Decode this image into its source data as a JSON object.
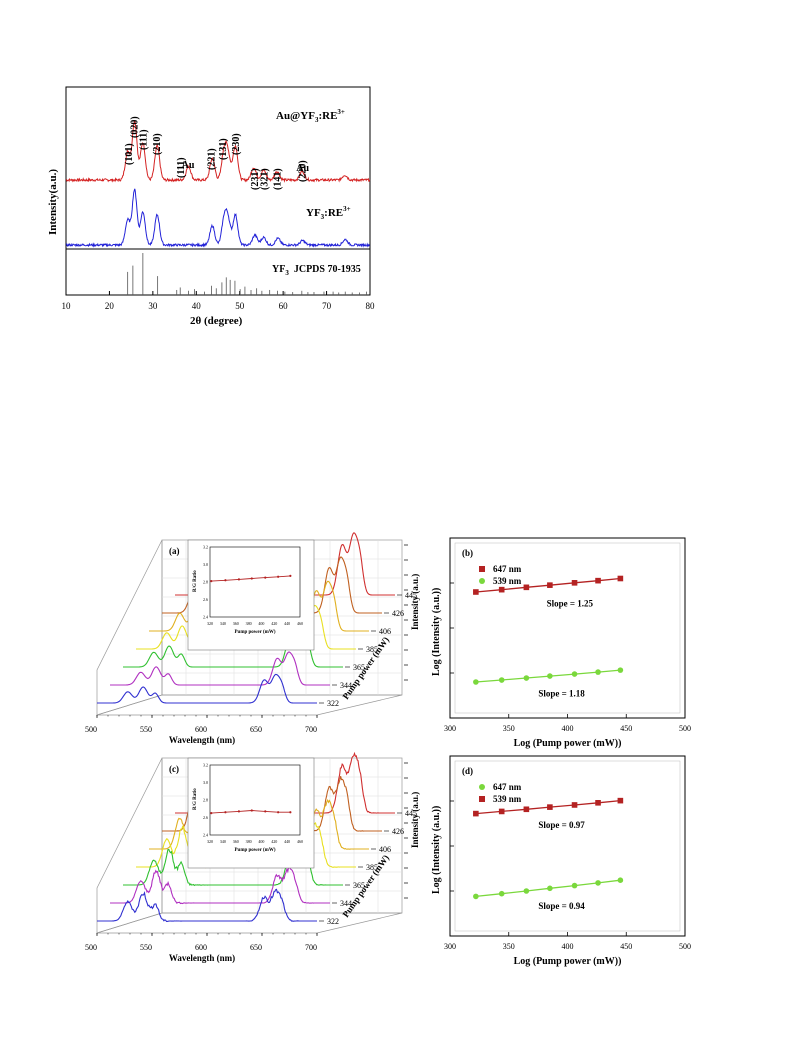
{
  "xrd": {
    "type": "line",
    "ylabel": "Intensity(a.u.)",
    "xlabel": "2θ (degree)",
    "xlim": [
      10,
      80
    ],
    "x_ticks": [
      "10",
      "20",
      "30",
      "40",
      "50",
      "60",
      "70",
      "80"
    ],
    "traces": [
      {
        "label_main": "Au@YF",
        "label_sub": "3",
        "label_tail": ":RE",
        "label_sup": "3+",
        "color": "#d42222"
      },
      {
        "label_main": "YF",
        "label_sub": "3",
        "label_tail": ":RE",
        "label_sup": "3+",
        "color": "#2222d8"
      }
    ],
    "peaks_label_x": [
      24.5,
      25.8,
      27.8,
      31.0,
      36.5,
      43.5,
      46.2,
      49.2,
      53.5,
      55.7,
      58.7,
      64.5
    ],
    "peak_labels": [
      "(101)",
      "(020)",
      "(111)",
      "(210)",
      "(111)",
      "(221)",
      "(131)",
      "(230)",
      "(231)",
      "(321)",
      "(141)",
      "(220)"
    ],
    "au_labels": [
      {
        "label": "Au",
        "x": 38.1
      },
      {
        "label": "Au",
        "x": 64.5
      }
    ],
    "reference": {
      "label": "YF",
      "sub": "3",
      "tail": "  JCPDS 70-1935"
    },
    "reference_lines": [
      {
        "x": 24.2,
        "h": 0.55
      },
      {
        "x": 25.4,
        "h": 0.7
      },
      {
        "x": 27.7,
        "h": 1.0
      },
      {
        "x": 31.1,
        "h": 0.45
      },
      {
        "x": 35.5,
        "h": 0.12
      },
      {
        "x": 36.3,
        "h": 0.18
      },
      {
        "x": 38.2,
        "h": 0.1
      },
      {
        "x": 39.6,
        "h": 0.14
      },
      {
        "x": 41.9,
        "h": 0.08
      },
      {
        "x": 43.5,
        "h": 0.22
      },
      {
        "x": 44.6,
        "h": 0.16
      },
      {
        "x": 45.9,
        "h": 0.3
      },
      {
        "x": 46.9,
        "h": 0.42
      },
      {
        "x": 47.8,
        "h": 0.36
      },
      {
        "x": 48.9,
        "h": 0.34
      },
      {
        "x": 50.1,
        "h": 0.14
      },
      {
        "x": 51.2,
        "h": 0.2
      },
      {
        "x": 52.6,
        "h": 0.12
      },
      {
        "x": 53.9,
        "h": 0.16
      },
      {
        "x": 55.1,
        "h": 0.1
      },
      {
        "x": 56.9,
        "h": 0.12
      },
      {
        "x": 58.7,
        "h": 0.1
      },
      {
        "x": 60.4,
        "h": 0.08
      },
      {
        "x": 62.2,
        "h": 0.07
      },
      {
        "x": 64.3,
        "h": 0.1
      },
      {
        "x": 65.7,
        "h": 0.07
      },
      {
        "x": 67.1,
        "h": 0.07
      },
      {
        "x": 69.4,
        "h": 0.08
      },
      {
        "x": 71.5,
        "h": 0.08
      },
      {
        "x": 72.8,
        "h": 0.06
      },
      {
        "x": 74.3,
        "h": 0.08
      },
      {
        "x": 75.9,
        "h": 0.06
      },
      {
        "x": 77.6,
        "h": 0.06
      },
      {
        "x": 79.2,
        "h": 0.08
      }
    ]
  },
  "waterfalls": [
    {
      "panel": "(a)",
      "xlabel": "Wavelength (nm)",
      "x_ticks": [
        "500",
        "550",
        "600",
        "650",
        "700"
      ],
      "z_label": "Pump power (mW)",
      "y_label": "Intensity (a.u.)",
      "powers": [
        "445",
        "426",
        "406",
        "385",
        "365",
        "344",
        "322"
      ],
      "colors": [
        "#d03030",
        "#c06020",
        "#e0b020",
        "#e8e020",
        "#30c030",
        "#b030c0",
        "#3030d0"
      ],
      "amp_green": [
        0.55,
        0.5,
        0.46,
        0.42,
        0.38,
        0.33,
        0.29
      ],
      "amp_red": [
        1.0,
        0.9,
        0.8,
        0.7,
        0.61,
        0.53,
        0.46
      ],
      "inset": {
        "xlabel": "Pump power (mW)",
        "ylabel": "R/G Ratio",
        "x_ticks": [
          "320",
          "340",
          "360",
          "380",
          "400",
          "420",
          "440",
          "460"
        ],
        "y_ticks": [
          "3.2",
          "3.0",
          "2.8",
          "2.6",
          "2.4"
        ],
        "x": [
          322,
          344,
          365,
          385,
          406,
          426,
          445
        ],
        "y": [
          2.81,
          2.82,
          2.83,
          2.84,
          2.85,
          2.86,
          2.87
        ],
        "xlim": [
          320,
          460
        ],
        "ylim": [
          2.4,
          3.2
        ]
      }
    },
    {
      "panel": "(c)",
      "xlabel": "Wavelength (nm)",
      "x_ticks": [
        "500",
        "550",
        "600",
        "650",
        "700"
      ],
      "z_label": "Pump power (mW)",
      "y_label": "Intensity (a.u.)",
      "powers": [
        "445",
        "426",
        "406",
        "385",
        "365",
        "344",
        "322"
      ],
      "colors": [
        "#d03030",
        "#c06020",
        "#e0b020",
        "#e8e020",
        "#30c030",
        "#b030c0",
        "#3030d0"
      ],
      "amp_green": [
        0.95,
        0.88,
        0.8,
        0.72,
        0.64,
        0.57,
        0.5
      ],
      "amp_red": [
        0.95,
        0.86,
        0.78,
        0.7,
        0.62,
        0.55,
        0.48
      ],
      "inset": {
        "xlabel": "Pump power (mW)",
        "ylabel": "R/G Ratio",
        "x_ticks": [
          "320",
          "340",
          "360",
          "380",
          "400",
          "420",
          "440",
          "460"
        ],
        "y_ticks": [
          "3.2",
          "3.0",
          "2.8",
          "2.6",
          "2.4"
        ],
        "x": [
          322,
          344,
          365,
          385,
          406,
          426,
          445
        ],
        "y": [
          2.65,
          2.66,
          2.67,
          2.68,
          2.67,
          2.66,
          2.66
        ],
        "xlim": [
          320,
          460
        ],
        "ylim": [
          2.4,
          3.2
        ]
      }
    }
  ],
  "loglog": [
    {
      "panel": "(b)",
      "xlabel": "Log (Pump power (mW))",
      "ylabel": "Log (Intensity (a.u.))",
      "xlim": [
        300,
        500
      ],
      "x_ticks": [
        "300",
        "350",
        "400",
        "450",
        "500"
      ],
      "x": [
        322,
        344,
        365,
        385,
        406,
        426,
        445
      ],
      "series": [
        {
          "name": "647 nm",
          "color": "#b42222",
          "marker": "square",
          "y": [
            0.7,
            0.713,
            0.726,
            0.738,
            0.751,
            0.763,
            0.775
          ],
          "slope_label": "Slope = 1.25",
          "slope_pos": [
            402,
            0.62
          ]
        },
        {
          "name": "539 nm",
          "color": "#7ad83c",
          "marker": "circle",
          "y": [
            0.2,
            0.211,
            0.222,
            0.233,
            0.244,
            0.255,
            0.266
          ],
          "slope_label": "Slope = 1.18",
          "slope_pos": [
            395,
            0.12
          ]
        }
      ]
    },
    {
      "panel": "(d)",
      "xlabel": "Log (Pump power (mW))",
      "ylabel": "Log (Intensity (a.u.))",
      "xlim": [
        300,
        500
      ],
      "x_ticks": [
        "300",
        "350",
        "400",
        "450",
        "500"
      ],
      "x": [
        322,
        344,
        365,
        385,
        406,
        426,
        445
      ],
      "series": [
        {
          "name": "647 nm",
          "color": "#7ad83c",
          "marker": "circle",
          "y": [
            0.22,
            0.235,
            0.25,
            0.265,
            0.28,
            0.295,
            0.31
          ],
          "slope_label": "Slope = 0.94",
          "slope_pos": [
            395,
            0.15
          ]
        },
        {
          "name": "539 nm",
          "color": "#b42222",
          "marker": "square",
          "y": [
            0.68,
            0.692,
            0.704,
            0.716,
            0.728,
            0.74,
            0.752
          ],
          "slope_label": "Slope = 0.97",
          "slope_pos": [
            395,
            0.6
          ]
        }
      ]
    }
  ]
}
